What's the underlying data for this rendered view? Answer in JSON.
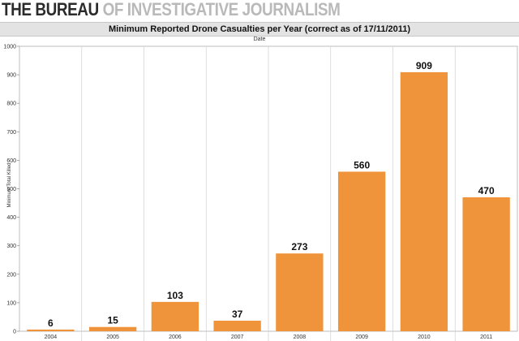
{
  "header": {
    "brand_bold": "THE BUREAU",
    "brand_light": " OF INVESTIGATIVE JOURNALISM"
  },
  "chart_data": {
    "type": "bar",
    "title": "Minimum Reported Drone Casualties per Year (correct as of 17/11/2011)",
    "column_header": "Date",
    "ylabel": "Minimum Total Killed",
    "xlabel": "",
    "categories": [
      "2004",
      "2005",
      "2006",
      "2007",
      "2008",
      "2009",
      "2010",
      "2011"
    ],
    "values": [
      6,
      15,
      103,
      37,
      273,
      560,
      909,
      470
    ],
    "ylim": [
      0,
      1000
    ],
    "yticks": [
      0,
      100,
      200,
      300,
      400,
      500,
      600,
      700,
      800,
      900,
      1000
    ],
    "bar_color": "#f0943c",
    "grid": false
  }
}
